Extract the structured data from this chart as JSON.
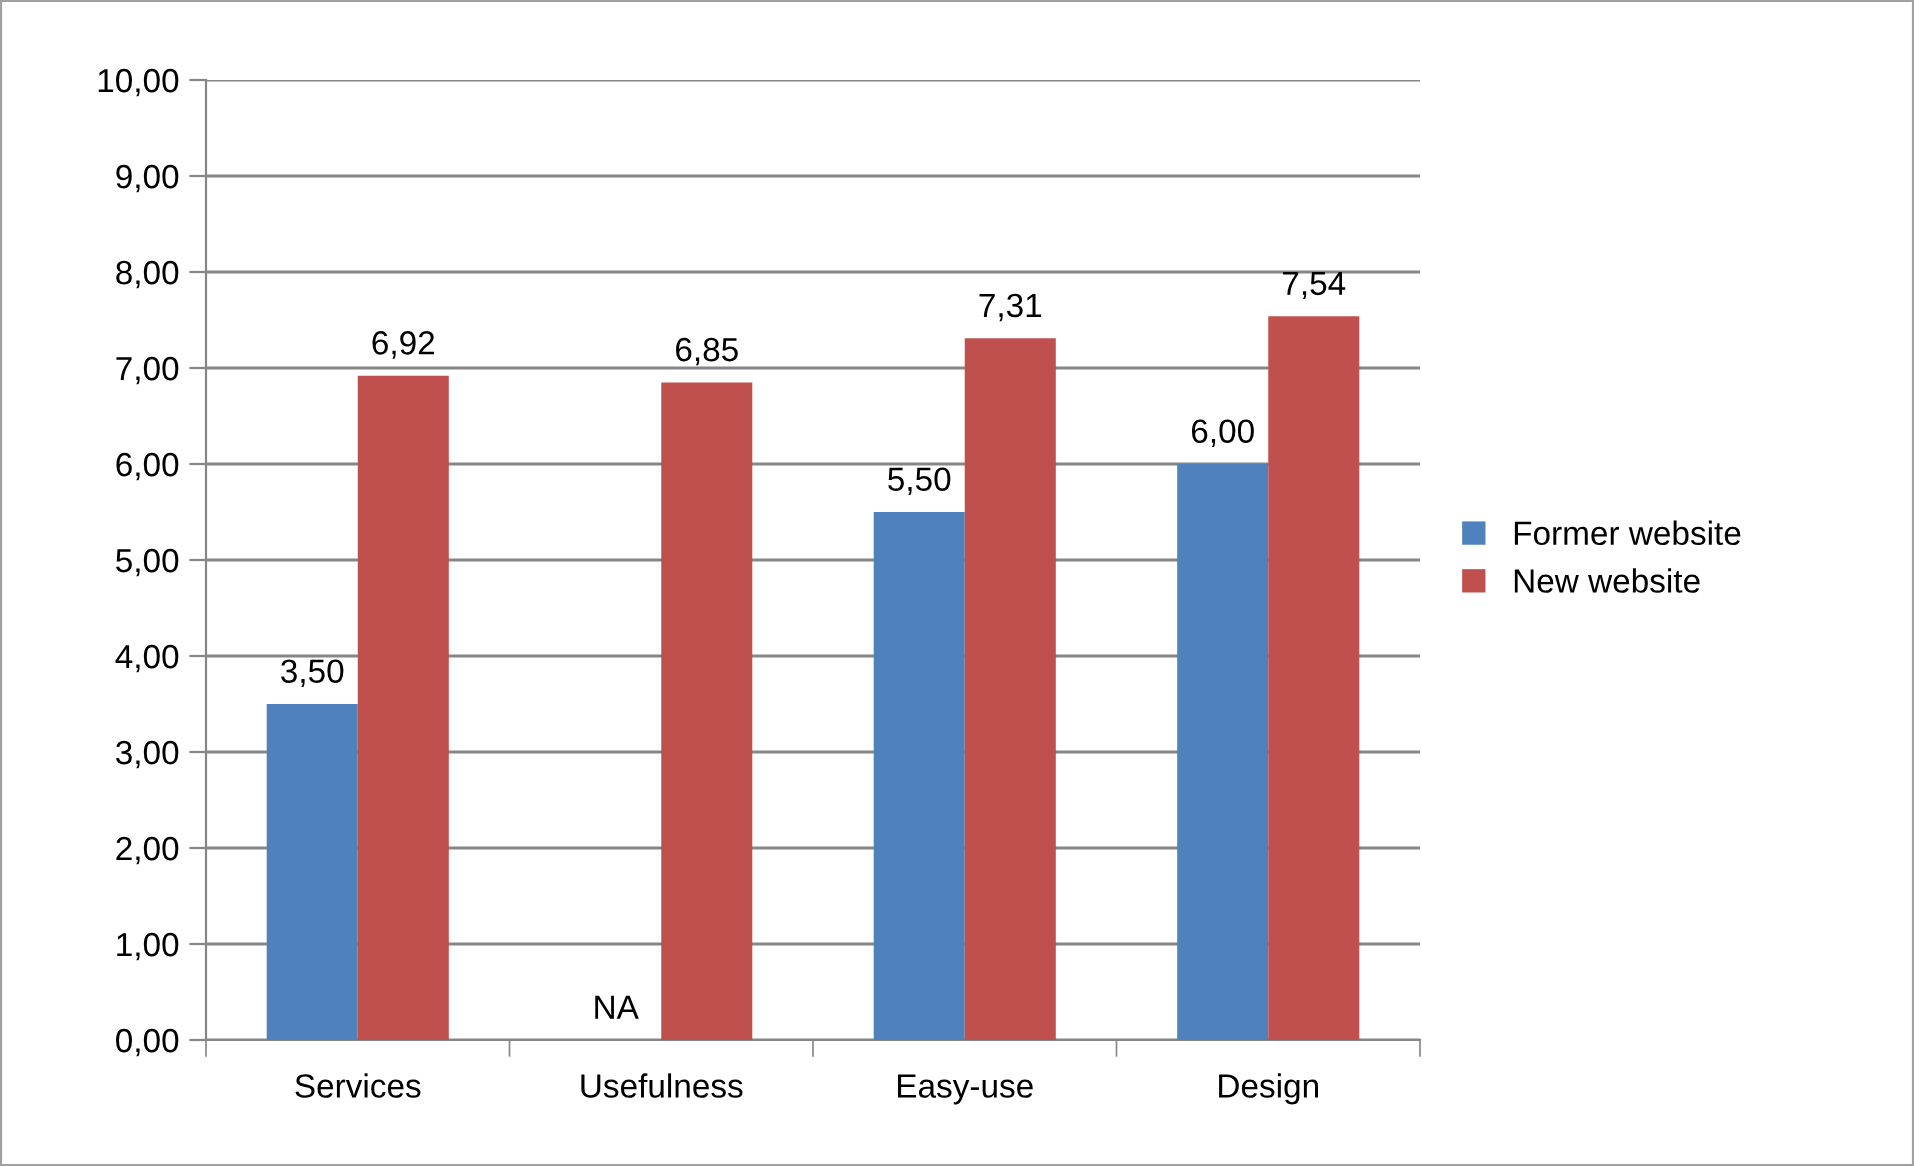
{
  "chart_data": {
    "type": "bar",
    "categories": [
      "Services",
      "Usefulness",
      "Easy-use",
      "Design"
    ],
    "series": [
      {
        "name": "Former website",
        "color": "#4f81bd",
        "values": [
          3.5,
          null,
          5.5,
          6.0
        ],
        "value_labels": [
          "3,50",
          "NA",
          "5,50",
          "6,00"
        ]
      },
      {
        "name": "New website",
        "color": "#c0504d",
        "values": [
          6.92,
          6.85,
          7.31,
          7.54
        ],
        "value_labels": [
          "6,92",
          "6,85",
          "7,31",
          "7,54"
        ]
      }
    ],
    "ylim": [
      0,
      10
    ],
    "yticks": [
      {
        "value": 0,
        "label": "0,00"
      },
      {
        "value": 1,
        "label": "1,00"
      },
      {
        "value": 2,
        "label": "2,00"
      },
      {
        "value": 3,
        "label": "3,00"
      },
      {
        "value": 4,
        "label": "4,00"
      },
      {
        "value": 5,
        "label": "5,00"
      },
      {
        "value": 6,
        "label": "6,00"
      },
      {
        "value": 7,
        "label": "7,00"
      },
      {
        "value": 8,
        "label": "8,00"
      },
      {
        "value": 9,
        "label": "9,00"
      },
      {
        "value": 10,
        "label": "10,00"
      }
    ],
    "grid": "y",
    "legend": "right"
  }
}
